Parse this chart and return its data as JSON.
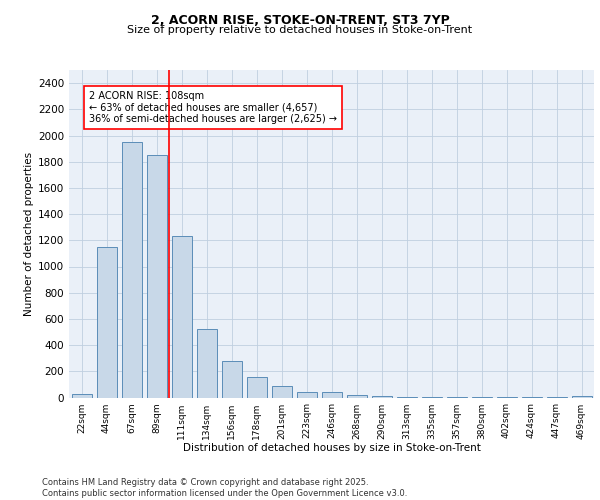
{
  "title_line1": "2, ACORN RISE, STOKE-ON-TRENT, ST3 7YP",
  "title_line2": "Size of property relative to detached houses in Stoke-on-Trent",
  "xlabel": "Distribution of detached houses by size in Stoke-on-Trent",
  "ylabel": "Number of detached properties",
  "bar_labels": [
    "22sqm",
    "44sqm",
    "67sqm",
    "89sqm",
    "111sqm",
    "134sqm",
    "156sqm",
    "178sqm",
    "201sqm",
    "223sqm",
    "246sqm",
    "268sqm",
    "290sqm",
    "313sqm",
    "335sqm",
    "357sqm",
    "380sqm",
    "402sqm",
    "424sqm",
    "447sqm",
    "469sqm"
  ],
  "bar_values": [
    25,
    1150,
    1950,
    1850,
    1230,
    520,
    275,
    155,
    90,
    45,
    45,
    20,
    15,
    5,
    3,
    2,
    2,
    2,
    1,
    1,
    15
  ],
  "bar_color": "#c8d8e8",
  "bar_edgecolor": "#5b8db8",
  "bar_linewidth": 0.7,
  "vline_color": "red",
  "vline_linewidth": 1.2,
  "vline_index": 4,
  "annotation_text": "2 ACORN RISE: 108sqm\n← 63% of detached houses are smaller (4,657)\n36% of semi-detached houses are larger (2,625) →",
  "annotation_box_color": "white",
  "annotation_box_edgecolor": "red",
  "annotation_fontsize": 7,
  "ylim": [
    0,
    2500
  ],
  "yticks": [
    0,
    200,
    400,
    600,
    800,
    1000,
    1200,
    1400,
    1600,
    1800,
    2000,
    2200,
    2400
  ],
  "grid_color": "#c0cfe0",
  "bg_color": "#eaf0f8",
  "footer_text": "Contains HM Land Registry data © Crown copyright and database right 2025.\nContains public sector information licensed under the Open Government Licence v3.0.",
  "footer_fontsize": 6,
  "title1_fontsize": 9,
  "title2_fontsize": 8,
  "ylabel_fontsize": 7.5,
  "xlabel_fontsize": 7.5,
  "ytick_fontsize": 7.5,
  "xtick_fontsize": 6.5
}
